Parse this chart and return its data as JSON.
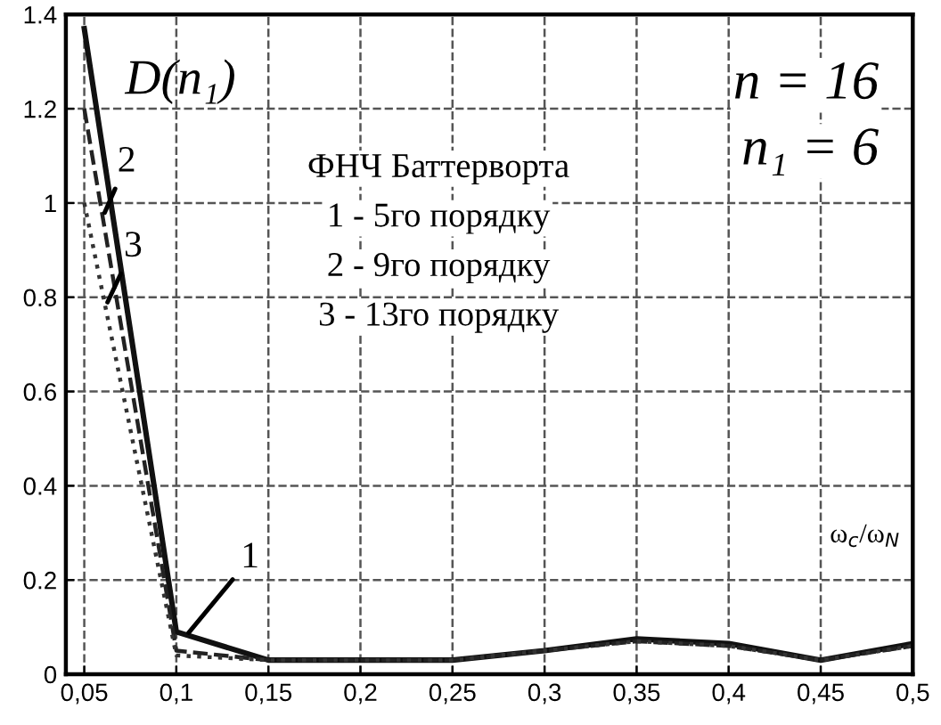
{
  "chart_data": {
    "type": "line",
    "xlabel": "ω$_{c}$/ω$_{N}$",
    "ylabel": "D(n₁)",
    "x": [
      0.05,
      0.1,
      0.15,
      0.2,
      0.25,
      0.3,
      0.35,
      0.4,
      0.45,
      0.5
    ],
    "series": [
      {
        "color": "#111111",
        "line_style": "solid",
        "values": [
          1.37,
          0.09,
          0.03,
          0.03,
          0.03,
          0.05,
          0.075,
          0.065,
          0.03,
          0.065
        ]
      },
      {
        "color": "#222222",
        "line_style": "dashed",
        "values": [
          1.2,
          0.05,
          0.03,
          0.03,
          0.03,
          0.05,
          0.07,
          0.06,
          0.03,
          0.06
        ]
      },
      {
        "color": "#333333",
        "line_style": "dotted",
        "values": [
          1.0,
          0.04,
          0.03,
          0.03,
          0.03,
          0.05,
          0.07,
          0.06,
          0.03,
          0.06
        ]
      }
    ],
    "xlim": [
      0.04,
      0.5
    ],
    "ylim": [
      0,
      1.4
    ],
    "xticks": [
      {
        "value": 0.05,
        "label": "0,05"
      },
      {
        "value": 0.1,
        "label": "0,1"
      },
      {
        "value": 0.15,
        "label": "0,15"
      },
      {
        "value": 0.2,
        "label": "0,2"
      },
      {
        "value": 0.25,
        "label": "0,25"
      },
      {
        "value": 0.3,
        "label": "0,3"
      },
      {
        "value": 0.35,
        "label": "0,35"
      },
      {
        "value": 0.4,
        "label": "0,4"
      },
      {
        "value": 0.45,
        "label": "0,45"
      },
      {
        "value": 0.5,
        "label": "0,5"
      }
    ],
    "yticks": [
      0,
      0.2,
      0.4,
      0.6,
      0.8,
      1,
      1.2,
      1.4
    ],
    "grid": true,
    "annotations": [
      {
        "text": "1",
        "x": 0.105,
        "y": 0.08
      },
      {
        "text": "2",
        "x": 0.06,
        "y": 0.97
      },
      {
        "text": "3",
        "x": 0.0615,
        "y": 0.78
      },
      "n = 16",
      "n₁ = 6",
      "ФНЧ Баттерворта",
      "1 - 5го порядку",
      "2 - 9го порядку",
      "3 - 13го порядку"
    ]
  }
}
